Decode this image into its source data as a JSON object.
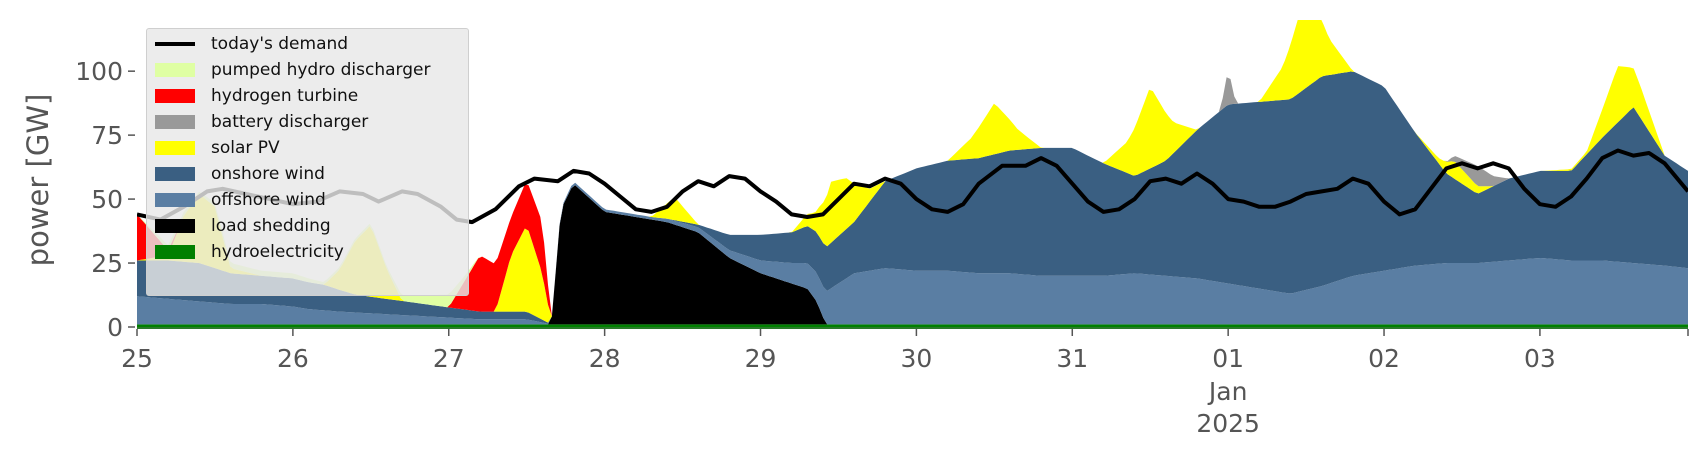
{
  "chart_data": {
    "type": "area",
    "xlabel": "",
    "ylabel": "power [GW]",
    "ylim": [
      0,
      120
    ],
    "yticks": [
      0,
      25,
      50,
      75,
      100
    ],
    "xlim": [
      0,
      9.95
    ],
    "xticks": [
      {
        "x": 0,
        "label": "25"
      },
      {
        "x": 1,
        "label": "26"
      },
      {
        "x": 2,
        "label": "27"
      },
      {
        "x": 3,
        "label": "28"
      },
      {
        "x": 4,
        "label": "29"
      },
      {
        "x": 5,
        "label": "30"
      },
      {
        "x": 6,
        "label": "31"
      },
      {
        "x": 7,
        "label": "01",
        "sublabel": "Jan",
        "subsublabel": "2025"
      },
      {
        "x": 8,
        "label": "02"
      },
      {
        "x": 9,
        "label": "03"
      }
    ],
    "grid": false,
    "legend_position": "top-left",
    "stack_order": [
      "hydroelectricity",
      "load shedding",
      "offshore wind",
      "onshore wind",
      "solar PV",
      "battery discharger",
      "hydrogen turbine",
      "pumped hydro discharger"
    ],
    "series": [
      {
        "name": "hydroelectricity",
        "color": "#008000",
        "points": [
          [
            0,
            1
          ],
          [
            1,
            1
          ],
          [
            2,
            1
          ],
          [
            3,
            1
          ],
          [
            4,
            1
          ],
          [
            5,
            1
          ],
          [
            6,
            1
          ],
          [
            7,
            1
          ],
          [
            8,
            1
          ],
          [
            9,
            1
          ],
          [
            9.95,
            1
          ]
        ]
      },
      {
        "name": "load shedding",
        "color": "#000000",
        "points": [
          [
            0,
            0
          ],
          [
            2.64,
            0
          ],
          [
            2.66,
            2
          ],
          [
            2.72,
            45
          ],
          [
            2.8,
            55
          ],
          [
            3,
            44
          ],
          [
            3.2,
            42
          ],
          [
            3.4,
            40
          ],
          [
            3.6,
            36
          ],
          [
            3.8,
            26
          ],
          [
            4,
            20
          ],
          [
            4.2,
            16
          ],
          [
            4.3,
            14
          ],
          [
            4.36,
            9
          ],
          [
            4.42,
            0
          ],
          [
            9.95,
            0
          ]
        ]
      },
      {
        "name": "offshore wind",
        "color": "#5a7ea3",
        "points": [
          [
            0,
            11
          ],
          [
            0.2,
            10
          ],
          [
            0.4,
            9
          ],
          [
            0.6,
            8
          ],
          [
            0.8,
            8
          ],
          [
            1,
            7
          ],
          [
            1.1,
            6
          ],
          [
            1.3,
            5
          ],
          [
            1.6,
            4
          ],
          [
            1.9,
            3
          ],
          [
            2.2,
            2
          ],
          [
            2.5,
            2
          ],
          [
            2.66,
            0
          ],
          [
            2.8,
            1
          ],
          [
            3,
            1
          ],
          [
            3.3,
            1
          ],
          [
            3.6,
            2
          ],
          [
            3.8,
            3
          ],
          [
            4,
            5
          ],
          [
            4.2,
            8
          ],
          [
            4.4,
            12
          ],
          [
            4.6,
            20
          ],
          [
            4.8,
            22
          ],
          [
            5,
            21
          ],
          [
            5.2,
            21
          ],
          [
            5.4,
            20
          ],
          [
            5.6,
            20
          ],
          [
            5.8,
            19
          ],
          [
            6,
            19
          ],
          [
            6.2,
            19
          ],
          [
            6.4,
            20
          ],
          [
            6.6,
            19
          ],
          [
            6.8,
            18
          ],
          [
            7,
            16
          ],
          [
            7.2,
            14
          ],
          [
            7.4,
            12
          ],
          [
            7.6,
            15
          ],
          [
            7.8,
            19
          ],
          [
            8,
            21
          ],
          [
            8.2,
            23
          ],
          [
            8.4,
            24
          ],
          [
            8.6,
            24
          ],
          [
            8.8,
            25
          ],
          [
            9,
            26
          ],
          [
            9.2,
            25
          ],
          [
            9.4,
            25
          ],
          [
            9.6,
            24
          ],
          [
            9.8,
            23
          ],
          [
            9.95,
            22
          ]
        ]
      },
      {
        "name": "onshore wind",
        "color": "#3a5f82",
        "points": [
          [
            0,
            14
          ],
          [
            0.2,
            15
          ],
          [
            0.4,
            15
          ],
          [
            0.6,
            12
          ],
          [
            0.8,
            11
          ],
          [
            1,
            11
          ],
          [
            1.2,
            10
          ],
          [
            1.4,
            7
          ],
          [
            1.6,
            6
          ],
          [
            1.8,
            5
          ],
          [
            2,
            4
          ],
          [
            2.2,
            3
          ],
          [
            2.5,
            3
          ],
          [
            2.66,
            0
          ],
          [
            3,
            0
          ],
          [
            3.4,
            0
          ],
          [
            3.6,
            1
          ],
          [
            3.8,
            6
          ],
          [
            4,
            10
          ],
          [
            4.2,
            12
          ],
          [
            4.4,
            17
          ],
          [
            4.6,
            20
          ],
          [
            4.8,
            34
          ],
          [
            5,
            40
          ],
          [
            5.2,
            43
          ],
          [
            5.4,
            45
          ],
          [
            5.6,
            48
          ],
          [
            5.8,
            50
          ],
          [
            6,
            50
          ],
          [
            6.2,
            44
          ],
          [
            6.4,
            38
          ],
          [
            6.6,
            45
          ],
          [
            6.8,
            58
          ],
          [
            7,
            70
          ],
          [
            7.2,
            73
          ],
          [
            7.4,
            76
          ],
          [
            7.6,
            82
          ],
          [
            7.8,
            80
          ],
          [
            8,
            72
          ],
          [
            8.2,
            52
          ],
          [
            8.4,
            35
          ],
          [
            8.6,
            27
          ],
          [
            8.8,
            32
          ],
          [
            9,
            34
          ],
          [
            9.2,
            35
          ],
          [
            9.4,
            48
          ],
          [
            9.6,
            61
          ],
          [
            9.8,
            43
          ],
          [
            9.95,
            38
          ]
        ]
      },
      {
        "name": "solar PV",
        "color": "#ffff00",
        "points": [
          [
            0,
            0
          ],
          [
            0.2,
            2
          ],
          [
            0.3,
            18
          ],
          [
            0.4,
            27
          ],
          [
            0.5,
            24
          ],
          [
            0.6,
            2
          ],
          [
            0.8,
            0
          ],
          [
            1.2,
            0
          ],
          [
            1.3,
            8
          ],
          [
            1.4,
            21
          ],
          [
            1.5,
            28
          ],
          [
            1.6,
            12
          ],
          [
            1.7,
            0
          ],
          [
            2,
            0
          ],
          [
            2.3,
            0
          ],
          [
            2.4,
            22
          ],
          [
            2.5,
            34
          ],
          [
            2.6,
            18
          ],
          [
            2.66,
            0
          ],
          [
            3,
            0
          ],
          [
            3.3,
            0
          ],
          [
            3.45,
            9
          ],
          [
            3.6,
            0
          ],
          [
            3.8,
            0
          ],
          [
            4.2,
            0
          ],
          [
            4.35,
            7
          ],
          [
            4.45,
            24
          ],
          [
            4.55,
            20
          ],
          [
            4.7,
            5
          ],
          [
            4.8,
            0
          ],
          [
            5.2,
            0
          ],
          [
            5.35,
            8
          ],
          [
            5.5,
            20
          ],
          [
            5.65,
            8
          ],
          [
            5.8,
            0
          ],
          [
            6.2,
            0
          ],
          [
            6.35,
            12
          ],
          [
            6.5,
            32
          ],
          [
            6.65,
            12
          ],
          [
            6.8,
            0
          ],
          [
            7.2,
            0
          ],
          [
            7.35,
            13
          ],
          [
            7.5,
            38
          ],
          [
            7.65,
            14
          ],
          [
            7.8,
            0
          ],
          [
            8.2,
            0
          ],
          [
            8.35,
            2
          ],
          [
            8.45,
            7
          ],
          [
            8.6,
            3
          ],
          [
            8.7,
            0
          ],
          [
            9,
            0
          ],
          [
            9.3,
            1
          ],
          [
            9.4,
            11
          ],
          [
            9.5,
            22
          ],
          [
            9.65,
            12
          ],
          [
            9.8,
            0
          ],
          [
            9.95,
            0
          ]
        ]
      },
      {
        "name": "battery discharger",
        "color": "#999999",
        "points": [
          [
            0,
            0
          ],
          [
            6.8,
            0
          ],
          [
            6.95,
            0
          ],
          [
            7,
            14
          ],
          [
            7.05,
            0
          ],
          [
            7.5,
            0
          ],
          [
            8.4,
            0
          ],
          [
            8.5,
            4
          ],
          [
            8.6,
            8
          ],
          [
            8.7,
            4
          ],
          [
            8.8,
            0
          ],
          [
            9.95,
            0
          ]
        ]
      },
      {
        "name": "hydrogen turbine",
        "color": "#ff0000",
        "points": [
          [
            0,
            18
          ],
          [
            0.1,
            10
          ],
          [
            0.2,
            2
          ],
          [
            0.3,
            0
          ],
          [
            0.8,
            0
          ],
          [
            1.2,
            0
          ],
          [
            1.5,
            0
          ],
          [
            2,
            0
          ],
          [
            2.2,
            22
          ],
          [
            2.4,
            15
          ],
          [
            2.6,
            20
          ],
          [
            2.66,
            0
          ],
          [
            9.95,
            0
          ]
        ]
      },
      {
        "name": "pumped hydro discharger",
        "color": "#dfffa3",
        "points": [
          [
            0,
            0
          ],
          [
            0.2,
            2
          ],
          [
            0.4,
            1
          ],
          [
            0.6,
            2
          ],
          [
            0.8,
            2
          ],
          [
            1,
            2
          ],
          [
            1.2,
            1
          ],
          [
            1.4,
            1
          ],
          [
            1.6,
            1
          ],
          [
            1.8,
            3
          ],
          [
            2,
            5
          ],
          [
            2.1,
            2
          ],
          [
            2.2,
            0
          ],
          [
            9.95,
            0
          ]
        ]
      },
      {
        "name": "today's demand",
        "color": "#000000",
        "line": true,
        "points": [
          [
            0,
            44
          ],
          [
            0.15,
            42
          ],
          [
            0.3,
            47
          ],
          [
            0.45,
            53
          ],
          [
            0.55,
            54
          ],
          [
            0.7,
            52
          ],
          [
            0.85,
            50
          ],
          [
            1,
            48
          ],
          [
            1.15,
            49
          ],
          [
            1.3,
            53
          ],
          [
            1.45,
            52
          ],
          [
            1.55,
            49
          ],
          [
            1.7,
            53
          ],
          [
            1.8,
            52
          ],
          [
            1.95,
            47
          ],
          [
            2.05,
            42
          ],
          [
            2.15,
            41
          ],
          [
            2.3,
            46
          ],
          [
            2.45,
            55
          ],
          [
            2.55,
            58
          ],
          [
            2.7,
            57
          ],
          [
            2.8,
            61
          ],
          [
            2.9,
            60
          ],
          [
            3,
            56
          ],
          [
            3.1,
            51
          ],
          [
            3.2,
            46
          ],
          [
            3.3,
            45
          ],
          [
            3.4,
            47
          ],
          [
            3.5,
            53
          ],
          [
            3.6,
            57
          ],
          [
            3.7,
            55
          ],
          [
            3.8,
            59
          ],
          [
            3.9,
            58
          ],
          [
            4,
            53
          ],
          [
            4.1,
            49
          ],
          [
            4.2,
            44
          ],
          [
            4.3,
            43
          ],
          [
            4.4,
            44
          ],
          [
            4.5,
            50
          ],
          [
            4.6,
            56
          ],
          [
            4.7,
            55
          ],
          [
            4.8,
            58
          ],
          [
            4.9,
            56
          ],
          [
            5,
            50
          ],
          [
            5.1,
            46
          ],
          [
            5.2,
            45
          ],
          [
            5.3,
            48
          ],
          [
            5.4,
            56
          ],
          [
            5.55,
            63
          ],
          [
            5.7,
            63
          ],
          [
            5.8,
            66
          ],
          [
            5.9,
            63
          ],
          [
            6,
            56
          ],
          [
            6.1,
            49
          ],
          [
            6.2,
            45
          ],
          [
            6.3,
            46
          ],
          [
            6.4,
            50
          ],
          [
            6.5,
            57
          ],
          [
            6.6,
            58
          ],
          [
            6.7,
            56
          ],
          [
            6.8,
            60
          ],
          [
            6.9,
            56
          ],
          [
            7,
            50
          ],
          [
            7.1,
            49
          ],
          [
            7.2,
            47
          ],
          [
            7.3,
            47
          ],
          [
            7.4,
            49
          ],
          [
            7.5,
            52
          ],
          [
            7.6,
            53
          ],
          [
            7.7,
            54
          ],
          [
            7.8,
            58
          ],
          [
            7.9,
            56
          ],
          [
            8,
            49
          ],
          [
            8.1,
            44
          ],
          [
            8.2,
            46
          ],
          [
            8.3,
            54
          ],
          [
            8.4,
            62
          ],
          [
            8.5,
            64
          ],
          [
            8.6,
            62
          ],
          [
            8.7,
            64
          ],
          [
            8.8,
            62
          ],
          [
            8.9,
            54
          ],
          [
            9,
            48
          ],
          [
            9.1,
            47
          ],
          [
            9.2,
            51
          ],
          [
            9.3,
            58
          ],
          [
            9.4,
            66
          ],
          [
            9.5,
            69
          ],
          [
            9.6,
            67
          ],
          [
            9.7,
            68
          ],
          [
            9.8,
            64
          ],
          [
            9.95,
            53
          ]
        ]
      }
    ]
  }
}
